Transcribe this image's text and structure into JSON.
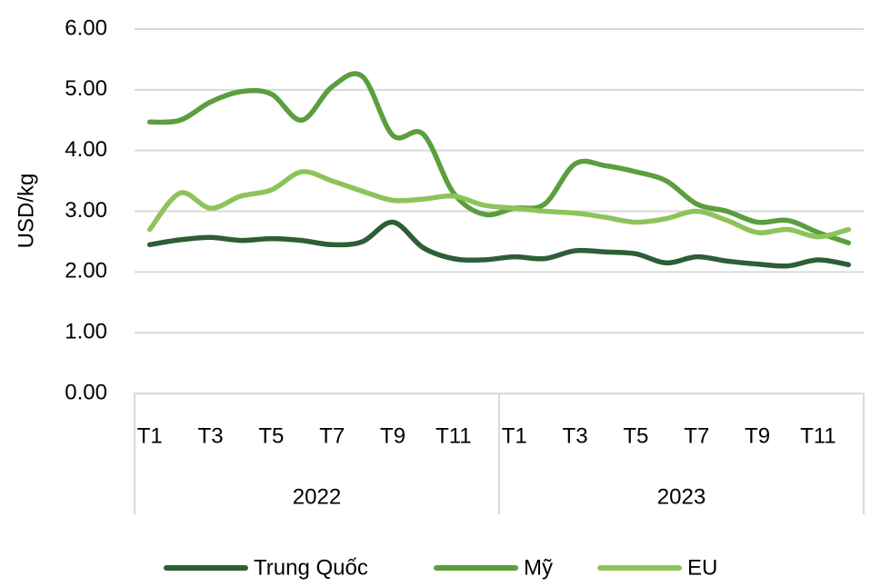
{
  "chart_data": {
    "type": "line",
    "ylabel": "USD/kg",
    "categories": [
      "T1",
      null,
      "T3",
      null,
      "T5",
      null,
      "T7",
      null,
      "T9",
      null,
      "T11",
      null,
      "T1",
      null,
      "T3",
      null,
      "T5",
      null,
      "T7",
      null,
      "T9",
      null,
      "T11",
      null
    ],
    "category_groups": [
      "2022",
      "2023"
    ],
    "series": [
      {
        "name": "Trung Quốc",
        "color": "#2d5e35",
        "values": [
          2.45,
          2.53,
          2.57,
          2.52,
          2.55,
          2.52,
          2.45,
          2.5,
          2.82,
          2.4,
          2.22,
          2.2,
          2.25,
          2.22,
          2.35,
          2.33,
          2.3,
          2.15,
          2.25,
          2.18,
          2.13,
          2.1,
          2.2,
          2.12
        ]
      },
      {
        "name": "Mỹ",
        "color": "#5a9e3e",
        "values": [
          4.47,
          4.5,
          4.8,
          4.97,
          4.93,
          4.5,
          5.05,
          5.22,
          4.25,
          4.27,
          3.3,
          2.95,
          3.05,
          3.12,
          3.78,
          3.75,
          3.65,
          3.5,
          3.12,
          3.0,
          2.82,
          2.85,
          2.65,
          2.48
        ]
      },
      {
        "name": "EU",
        "color": "#8cc45a",
        "values": [
          2.7,
          3.3,
          3.05,
          3.25,
          3.35,
          3.65,
          3.5,
          3.33,
          3.18,
          3.2,
          3.25,
          3.1,
          3.05,
          3.0,
          2.97,
          2.9,
          2.82,
          2.88,
          3.0,
          2.85,
          2.65,
          2.7,
          2.58,
          2.7
        ]
      }
    ],
    "ylim": [
      0,
      6
    ],
    "yticks": [
      {
        "value": 0,
        "label": "0.00"
      },
      {
        "value": 1,
        "label": "1.00"
      },
      {
        "value": 2,
        "label": "2.00"
      },
      {
        "value": 3,
        "label": "3.00"
      },
      {
        "value": 4,
        "label": "4.00"
      },
      {
        "value": 5,
        "label": "5.00"
      },
      {
        "value": 6,
        "label": "6.00"
      }
    ],
    "grid": true,
    "legend": "bottom"
  }
}
